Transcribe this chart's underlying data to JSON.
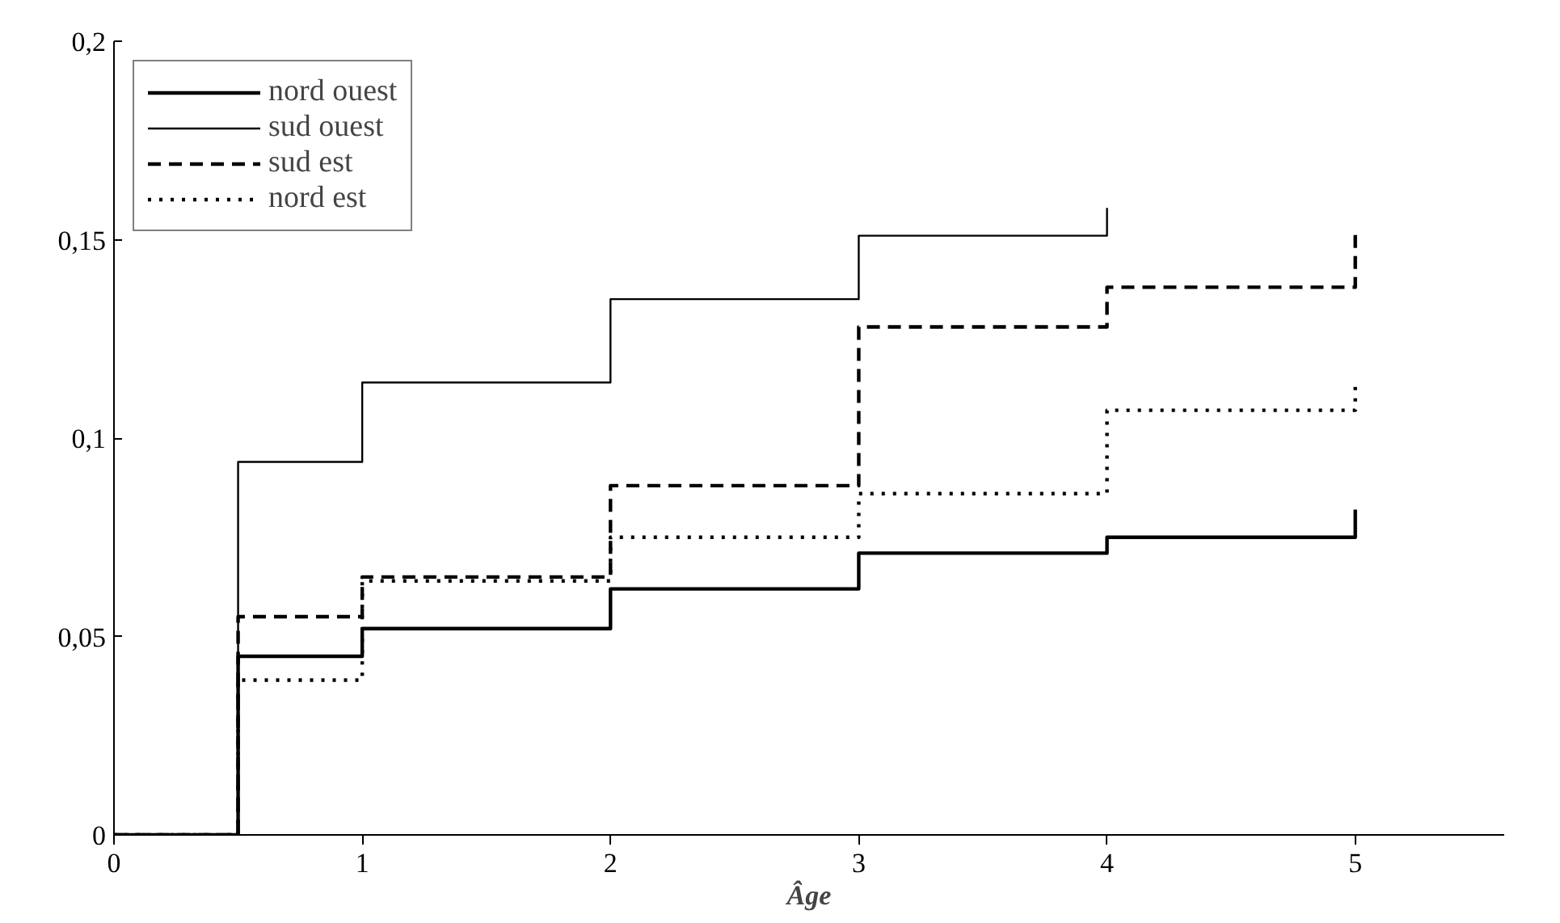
{
  "chart_data": {
    "type": "step",
    "xlabel": "Âge",
    "x": [
      0,
      0.5,
      1,
      2,
      3,
      4,
      5
    ],
    "series": [
      {
        "name": "nord ouest",
        "color": "#000000",
        "line_style": "solid",
        "values": [
          0,
          0.045,
          0.052,
          0.062,
          0.071,
          0.075,
          0.082
        ]
      },
      {
        "name": "sud ouest",
        "color": "#000000",
        "line_style": "solid",
        "x": [
          0,
          0.5,
          1,
          2,
          3,
          4
        ],
        "values": [
          0,
          0.094,
          0.114,
          0.135,
          0.151,
          0.158
        ]
      },
      {
        "name": "sud est",
        "color": "#000000",
        "line_style": "dashed",
        "values": [
          0,
          0.055,
          0.065,
          0.088,
          0.128,
          0.138,
          0.152
        ]
      },
      {
        "name": "nord est",
        "color": "#000000",
        "line_style": "dotted",
        "values": [
          0,
          0.039,
          0.064,
          0.075,
          0.086,
          0.107,
          0.113
        ]
      }
    ],
    "xlim": [
      0,
      5.6
    ],
    "xticks": [
      0,
      1,
      2,
      3,
      4,
      5
    ],
    "ylim": [
      0,
      0.2
    ],
    "yticks": [
      0,
      {
        "value": 0.05,
        "label": "0,05"
      },
      {
        "value": 0.1,
        "label": "0,1"
      },
      {
        "value": 0.15,
        "label": "0,15"
      },
      {
        "value": 0.2,
        "label": "0,2"
      }
    ],
    "grid": false,
    "legend": "top left"
  }
}
